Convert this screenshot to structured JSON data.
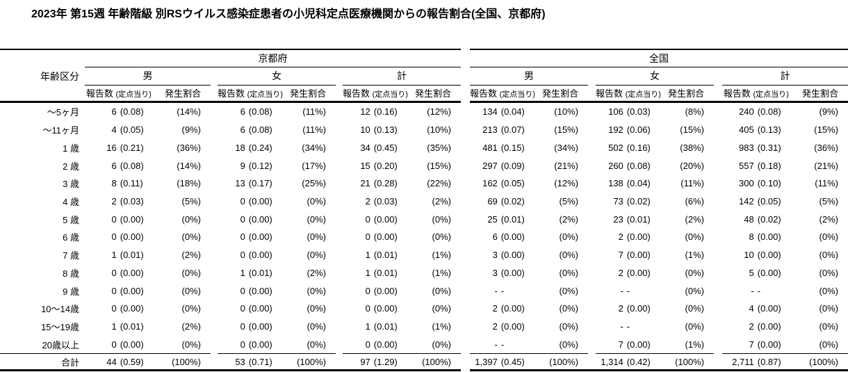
{
  "title": "2023年 第15週 年齢階級 別RSウイルス感染症患者の小児科定点医療機関からの報告割合(全国、京都府)",
  "header": {
    "age_label": "年齢区分",
    "groups": [
      {
        "label": "京都府"
      },
      {
        "label": "全国"
      }
    ],
    "sex_labels": [
      "男",
      "女",
      "計",
      "男",
      "女",
      "計"
    ],
    "col_reports": "報告数",
    "col_per_sentinel": "(定点当り)",
    "col_proportion": "発生割合"
  },
  "rows": [
    {
      "age": "～5ヶ月",
      "cells": [
        {
          "n": "6",
          "r": "(0.08)",
          "p": "(14%)"
        },
        {
          "n": "6",
          "r": "(0.08)",
          "p": "(11%)"
        },
        {
          "n": "12",
          "r": "(0.16)",
          "p": "(12%)"
        },
        {
          "n": "134",
          "r": "(0.04)",
          "p": "(10%)"
        },
        {
          "n": "106",
          "r": "(0.03)",
          "p": "(8%)"
        },
        {
          "n": "240",
          "r": "(0.08)",
          "p": "(9%)"
        }
      ]
    },
    {
      "age": "～11ヶ月",
      "cells": [
        {
          "n": "4",
          "r": "(0.05)",
          "p": "(9%)"
        },
        {
          "n": "6",
          "r": "(0.08)",
          "p": "(11%)"
        },
        {
          "n": "10",
          "r": "(0.13)",
          "p": "(10%)"
        },
        {
          "n": "213",
          "r": "(0.07)",
          "p": "(15%)"
        },
        {
          "n": "192",
          "r": "(0.06)",
          "p": "(15%)"
        },
        {
          "n": "405",
          "r": "(0.13)",
          "p": "(15%)"
        }
      ]
    },
    {
      "age": "1 歳",
      "cells": [
        {
          "n": "16",
          "r": "(0.21)",
          "p": "(36%)"
        },
        {
          "n": "18",
          "r": "(0.24)",
          "p": "(34%)"
        },
        {
          "n": "34",
          "r": "(0.45)",
          "p": "(35%)"
        },
        {
          "n": "481",
          "r": "(0.15)",
          "p": "(34%)"
        },
        {
          "n": "502",
          "r": "(0.16)",
          "p": "(38%)"
        },
        {
          "n": "983",
          "r": "(0.31)",
          "p": "(36%)"
        }
      ]
    },
    {
      "age": "2 歳",
      "cells": [
        {
          "n": "6",
          "r": "(0.08)",
          "p": "(14%)"
        },
        {
          "n": "9",
          "r": "(0.12)",
          "p": "(17%)"
        },
        {
          "n": "15",
          "r": "(0.20)",
          "p": "(15%)"
        },
        {
          "n": "297",
          "r": "(0.09)",
          "p": "(21%)"
        },
        {
          "n": "260",
          "r": "(0.08)",
          "p": "(20%)"
        },
        {
          "n": "557",
          "r": "(0.18)",
          "p": "(21%)"
        }
      ]
    },
    {
      "age": "3 歳",
      "cells": [
        {
          "n": "8",
          "r": "(0.11)",
          "p": "(18%)"
        },
        {
          "n": "13",
          "r": "(0.17)",
          "p": "(25%)"
        },
        {
          "n": "21",
          "r": "(0.28)",
          "p": "(22%)"
        },
        {
          "n": "162",
          "r": "(0.05)",
          "p": "(12%)"
        },
        {
          "n": "138",
          "r": "(0.04)",
          "p": "(11%)"
        },
        {
          "n": "300",
          "r": "(0.10)",
          "p": "(11%)"
        }
      ]
    },
    {
      "age": "4 歳",
      "cells": [
        {
          "n": "2",
          "r": "(0.03)",
          "p": "(5%)"
        },
        {
          "n": "0",
          "r": "(0.00)",
          "p": "(0%)"
        },
        {
          "n": "2",
          "r": "(0.03)",
          "p": "(2%)"
        },
        {
          "n": "69",
          "r": "(0.02)",
          "p": "(5%)"
        },
        {
          "n": "73",
          "r": "(0.02)",
          "p": "(6%)"
        },
        {
          "n": "142",
          "r": "(0.05)",
          "p": "(5%)"
        }
      ]
    },
    {
      "age": "5 歳",
      "cells": [
        {
          "n": "0",
          "r": "(0.00)",
          "p": "(0%)"
        },
        {
          "n": "0",
          "r": "(0.00)",
          "p": "(0%)"
        },
        {
          "n": "0",
          "r": "(0.00)",
          "p": "(0%)"
        },
        {
          "n": "25",
          "r": "(0.01)",
          "p": "(2%)"
        },
        {
          "n": "23",
          "r": "(0.01)",
          "p": "(2%)"
        },
        {
          "n": "48",
          "r": "(0.02)",
          "p": "(2%)"
        }
      ]
    },
    {
      "age": "6 歳",
      "cells": [
        {
          "n": "0",
          "r": "(0.00)",
          "p": "(0%)"
        },
        {
          "n": "0",
          "r": "(0.00)",
          "p": "(0%)"
        },
        {
          "n": "0",
          "r": "(0.00)",
          "p": "(0%)"
        },
        {
          "n": "6",
          "r": "(0.00)",
          "p": "(0%)"
        },
        {
          "n": "2",
          "r": "(0.00)",
          "p": "(0%)"
        },
        {
          "n": "8",
          "r": "(0.00)",
          "p": "(0%)"
        }
      ]
    },
    {
      "age": "7 歳",
      "cells": [
        {
          "n": "1",
          "r": "(0.01)",
          "p": "(2%)"
        },
        {
          "n": "0",
          "r": "(0.00)",
          "p": "(0%)"
        },
        {
          "n": "1",
          "r": "(0.01)",
          "p": "(1%)"
        },
        {
          "n": "3",
          "r": "(0.00)",
          "p": "(0%)"
        },
        {
          "n": "7",
          "r": "(0.00)",
          "p": "(1%)"
        },
        {
          "n": "10",
          "r": "(0.00)",
          "p": "(0%)"
        }
      ]
    },
    {
      "age": "8 歳",
      "cells": [
        {
          "n": "0",
          "r": "(0.00)",
          "p": "(0%)"
        },
        {
          "n": "1",
          "r": "(0.01)",
          "p": "(2%)"
        },
        {
          "n": "1",
          "r": "(0.01)",
          "p": "(1%)"
        },
        {
          "n": "3",
          "r": "(0.00)",
          "p": "(0%)"
        },
        {
          "n": "2",
          "r": "(0.00)",
          "p": "(0%)"
        },
        {
          "n": "5",
          "r": "(0.00)",
          "p": "(0%)"
        }
      ]
    },
    {
      "age": "9 歳",
      "cells": [
        {
          "n": "0",
          "r": "(0.00)",
          "p": "(0%)"
        },
        {
          "n": "0",
          "r": "(0.00)",
          "p": "(0%)"
        },
        {
          "n": "0",
          "r": "(0.00)",
          "p": "(0%)"
        },
        {
          "n": "-",
          "r": "-",
          "p": "(0%)"
        },
        {
          "n": "-",
          "r": "-",
          "p": "(0%)"
        },
        {
          "n": "-",
          "r": "-",
          "p": "(0%)"
        }
      ]
    },
    {
      "age": "10～14歳",
      "cells": [
        {
          "n": "0",
          "r": "(0.00)",
          "p": "(0%)"
        },
        {
          "n": "0",
          "r": "(0.00)",
          "p": "(0%)"
        },
        {
          "n": "0",
          "r": "(0.00)",
          "p": "(0%)"
        },
        {
          "n": "2",
          "r": "(0.00)",
          "p": "(0%)"
        },
        {
          "n": "2",
          "r": "(0.00)",
          "p": "(0%)"
        },
        {
          "n": "4",
          "r": "(0.00)",
          "p": "(0%)"
        }
      ]
    },
    {
      "age": "15～19歳",
      "cells": [
        {
          "n": "1",
          "r": "(0.01)",
          "p": "(2%)"
        },
        {
          "n": "0",
          "r": "(0.00)",
          "p": "(0%)"
        },
        {
          "n": "1",
          "r": "(0.01)",
          "p": "(1%)"
        },
        {
          "n": "2",
          "r": "(0.00)",
          "p": "(0%)"
        },
        {
          "n": "-",
          "r": "-",
          "p": "(0%)"
        },
        {
          "n": "2",
          "r": "(0.00)",
          "p": "(0%)"
        }
      ]
    },
    {
      "age": "20歳以上",
      "cells": [
        {
          "n": "0",
          "r": "(0.00)",
          "p": "(0%)"
        },
        {
          "n": "0",
          "r": "(0.00)",
          "p": "(0%)"
        },
        {
          "n": "0",
          "r": "(0.00)",
          "p": "(0%)"
        },
        {
          "n": "-",
          "r": "-",
          "p": "(0%)"
        },
        {
          "n": "7",
          "r": "(0.00)",
          "p": "(1%)"
        },
        {
          "n": "7",
          "r": "(0.00)",
          "p": "(0%)"
        }
      ]
    }
  ],
  "total": {
    "age": "合計",
    "cells": [
      {
        "n": "44",
        "r": "(0.59)",
        "p": "(100%)"
      },
      {
        "n": "53",
        "r": "(0.71)",
        "p": "(100%)"
      },
      {
        "n": "97",
        "r": "(1.29)",
        "p": "(100%)"
      },
      {
        "n": "1,397",
        "r": "(0.45)",
        "p": "(100%)"
      },
      {
        "n": "1,314",
        "r": "(0.42)",
        "p": "(100%)"
      },
      {
        "n": "2,711",
        "r": "(0.87)",
        "p": "(100%)"
      }
    ]
  },
  "colors": {
    "text": "#000000",
    "background": "#ffffff",
    "rule": "#000000"
  }
}
